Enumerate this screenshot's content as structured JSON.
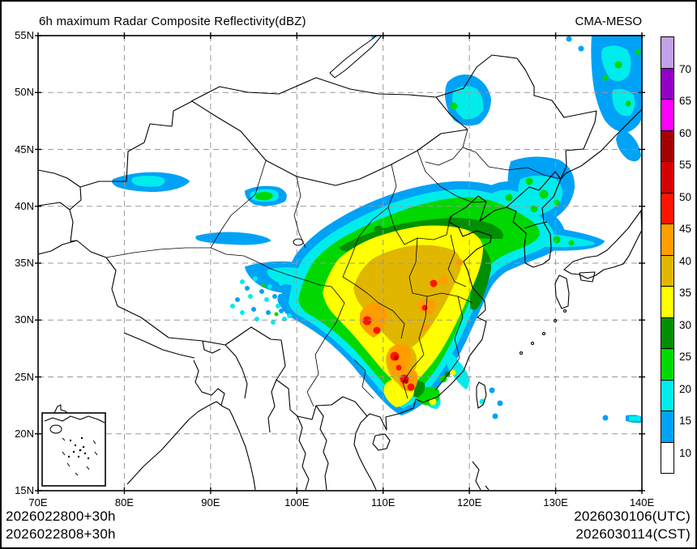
{
  "header": {
    "title": "6h maximum Radar Composite Reflectivity(dBZ)",
    "model_label": "CMA-MESO"
  },
  "map": {
    "lon_labels": [
      "70E",
      "80E",
      "90E",
      "100E",
      "110E",
      "120E",
      "130E",
      "140E"
    ],
    "lat_labels": [
      "55N",
      "50N",
      "45N",
      "40N",
      "35N",
      "30N",
      "25N",
      "20N",
      "15N"
    ],
    "grid": "dashed"
  },
  "colorbar": {
    "unit": "dBZ",
    "tick_labels_top_to_bottom": [
      "70",
      "65",
      "60",
      "55",
      "50",
      "45",
      "40",
      "35",
      "30",
      "25",
      "20",
      "15",
      "10"
    ],
    "segment_colors_top_to_bottom": [
      "#C2A1E8",
      "#9400C8",
      "#FF00FF",
      "#A40000",
      "#D60000",
      "#FF1400",
      "#FF9D00",
      "#E0B600",
      "#FFFF00",
      "#028E02",
      "#00D800",
      "#00ECEC",
      "#00A2F6",
      "#FFFFFF"
    ]
  },
  "footer": {
    "left_line1": "2026022800+30h",
    "left_line2": "2026022808+30h",
    "right_line1": "2026030106(UTC)",
    "right_line2": "2026030114(CST)"
  }
}
